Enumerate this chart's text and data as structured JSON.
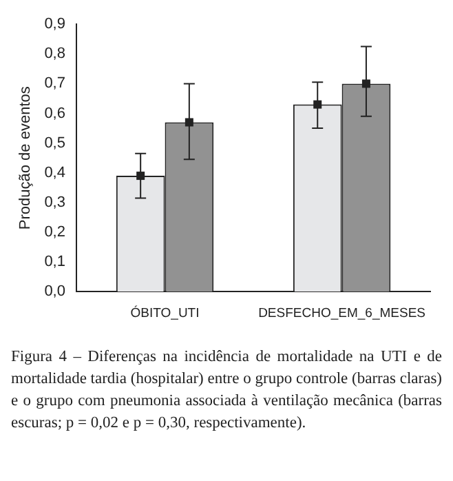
{
  "chart_data": {
    "type": "bar",
    "ylabel": "Produção de eventos",
    "categories": [
      "ÓBITO_UTI",
      "DESFECHO_EM_6_MESES"
    ],
    "series": [
      {
        "color": "#e6e7e9",
        "values": [
          0.39,
          0.63
        ],
        "errors": [
          [
            0.315,
            0.465
          ],
          [
            0.55,
            0.705
          ]
        ]
      },
      {
        "color": "#929292",
        "values": [
          0.57,
          0.7
        ],
        "errors": [
          [
            0.445,
            0.7
          ],
          [
            0.59,
            0.825
          ]
        ]
      }
    ],
    "ylim": [
      0,
      0.9
    ],
    "yticks": [
      {
        "value": 0,
        "label": "0,0"
      },
      {
        "value": 0.1,
        "label": "0,1"
      },
      {
        "value": 0.2,
        "label": "0,2"
      },
      {
        "value": 0.3,
        "label": "0,3"
      },
      {
        "value": 0.4,
        "label": "0,4"
      },
      {
        "value": 0.5,
        "label": "0,5"
      },
      {
        "value": 0.6,
        "label": "0,6"
      },
      {
        "value": 0.7,
        "label": "0,7"
      },
      {
        "value": 0.8,
        "label": "0,8"
      },
      {
        "value": 0.9,
        "label": "0,9"
      }
    ],
    "grid": false,
    "legend": false,
    "marker": "square",
    "annotations": [
      "Figura 4 – Diferenças na incidência de mortalidade na UTI e de mortalidade tardia (hospitalar) entre o grupo controle (barras claras) e o grupo com pneumonia associada à ventilação mecânica (barras escuras; p = 0,02 e p = 0,30, respectivamente)."
    ]
  }
}
